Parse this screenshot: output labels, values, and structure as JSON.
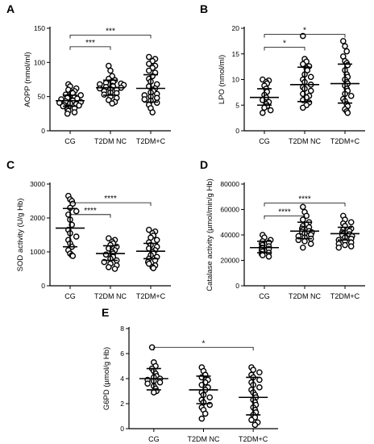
{
  "chart_data": [
    {
      "type": "scatter",
      "panel": "A",
      "ylabel": "AOPP (nmol/ml)",
      "ylim": [
        0,
        150
      ],
      "yticks": [
        0,
        50,
        100,
        150
      ],
      "categories": [
        "CG",
        "T2DM NC",
        "T2DM+C"
      ],
      "series": [
        {
          "values": [
            68,
            65,
            62,
            60,
            58,
            56,
            55,
            53,
            52,
            50,
            49,
            48,
            47,
            46,
            45,
            44,
            43,
            42,
            41,
            40,
            39,
            38,
            37,
            36,
            34,
            33,
            31,
            29,
            27,
            25
          ],
          "mean": 44,
          "sd_low": 36,
          "sd_high": 52
        },
        {
          "values": [
            95,
            88,
            80,
            76,
            74,
            72,
            71,
            70,
            69,
            68,
            67,
            66,
            65,
            64,
            63,
            62,
            61,
            60,
            58,
            56,
            55,
            53,
            50,
            48,
            45,
            42,
            40
          ],
          "mean": 63,
          "sd_low": 52,
          "sd_high": 74
        },
        {
          "values": [
            108,
            105,
            102,
            98,
            95,
            92,
            88,
            85,
            80,
            76,
            72,
            68,
            65,
            62,
            60,
            58,
            56,
            54,
            52,
            50,
            48,
            46,
            44,
            41,
            38,
            33,
            27
          ],
          "mean": 62,
          "sd_low": 42,
          "sd_high": 82
        }
      ],
      "significance": [
        {
          "from": 0,
          "to": 1,
          "label": "***",
          "y": 123
        },
        {
          "from": 0,
          "to": 2,
          "label": "***",
          "y": 140
        }
      ]
    },
    {
      "type": "scatter",
      "panel": "B",
      "ylabel": "LPO (nmol/ml)",
      "ylim": [
        0,
        20
      ],
      "yticks": [
        0,
        5,
        10,
        15,
        20
      ],
      "categories": [
        "CG",
        "T2DM NC",
        "T2DM+C"
      ],
      "series": [
        {
          "values": [
            10,
            9.8,
            9.5,
            9.2,
            8.8,
            8.2,
            7.6,
            7.0,
            6.5,
            6.0,
            5.6,
            5.2,
            4.8,
            4.5,
            4.0,
            3.5
          ],
          "mean": 6.5,
          "sd_low": 5.0,
          "sd_high": 8.2
        },
        {
          "values": [
            18.5,
            14,
            13.5,
            13,
            12.6,
            12.2,
            11.8,
            11,
            10.5,
            10,
            9.5,
            9,
            8.5,
            8.2,
            7.8,
            7.2,
            6.8,
            6.5,
            6,
            5.5,
            5,
            4.5
          ],
          "mean": 9.0,
          "sd_low": 5.7,
          "sd_high": 12.4
        },
        {
          "values": [
            17.5,
            16.5,
            15.5,
            14.5,
            13.6,
            13.2,
            12.8,
            11.8,
            11,
            10.5,
            10,
            9.5,
            9.2,
            8.8,
            8.2,
            7.8,
            7.2,
            6.8,
            6.2,
            5.8,
            5.2,
            4.8,
            4.2,
            3.8,
            3.5
          ],
          "mean": 9.2,
          "sd_low": 5.4,
          "sd_high": 13.0
        }
      ],
      "significance": [
        {
          "from": 0,
          "to": 1,
          "label": "*",
          "y": 16.3
        },
        {
          "from": 0,
          "to": 2,
          "label": "*",
          "y": 18.8
        }
      ]
    },
    {
      "type": "scatter",
      "panel": "C",
      "ylabel": "SOD activity (U/g Hb)",
      "ylim": [
        0,
        3000
      ],
      "yticks": [
        0,
        1000,
        2000,
        3000
      ],
      "categories": [
        "CG",
        "T2DM NC",
        "T2DM+C"
      ],
      "series": [
        {
          "values": [
            2650,
            2550,
            2500,
            2420,
            2300,
            2200,
            2100,
            1950,
            1800,
            1650,
            1550,
            1450,
            1350,
            1250,
            1150,
            1050,
            950,
            900,
            880
          ],
          "mean": 1700,
          "sd_low": 1150,
          "sd_high": 2280
        },
        {
          "values": [
            1400,
            1350,
            1300,
            1250,
            1200,
            1150,
            1100,
            1050,
            1000,
            950,
            920,
            880,
            850,
            800,
            750,
            700,
            650,
            600,
            550,
            500
          ],
          "mean": 950,
          "sd_low": 750,
          "sd_high": 1180
        },
        {
          "values": [
            1650,
            1600,
            1550,
            1480,
            1420,
            1350,
            1280,
            1200,
            1150,
            1100,
            1050,
            1000,
            950,
            900,
            850,
            800,
            750,
            700,
            650,
            600,
            550,
            520
          ],
          "mean": 1020,
          "sd_low": 800,
          "sd_high": 1250
        }
      ],
      "significance": [
        {
          "from": 0,
          "to": 1,
          "label": "****",
          "y": 2100
        },
        {
          "from": 0,
          "to": 2,
          "label": "****",
          "y": 2450
        }
      ]
    },
    {
      "type": "scatter",
      "panel": "D",
      "ylabel": "Catalase activity (µmol/min/g Hb)",
      "ylim": [
        0,
        80000
      ],
      "yticks": [
        0,
        20000,
        40000,
        60000,
        80000
      ],
      "categories": [
        "CG",
        "T2DM NC",
        "T2DM+C"
      ],
      "series": [
        {
          "values": [
            40000,
            38000,
            36000,
            35000,
            34000,
            33000,
            32000,
            31000,
            30000,
            29500,
            29000,
            28000,
            27000,
            26000,
            25000,
            24000,
            23000
          ],
          "mean": 30000,
          "sd_low": 26000,
          "sd_high": 35000
        },
        {
          "values": [
            62000,
            58000,
            55000,
            52000,
            50000,
            48000,
            47000,
            46000,
            45000,
            44000,
            43000,
            42500,
            42000,
            41000,
            40000,
            39000,
            38000,
            37000,
            36000,
            35000,
            33000,
            30000
          ],
          "mean": 43000,
          "sd_low": 37000,
          "sd_high": 50000
        },
        {
          "values": [
            55000,
            52000,
            50000,
            49000,
            47000,
            45000,
            44000,
            43000,
            42000,
            41000,
            40500,
            40000,
            39000,
            38000,
            37000,
            36000,
            35000,
            34000,
            33000,
            32000,
            31000,
            30000
          ],
          "mean": 41000,
          "sd_low": 36000,
          "sd_high": 46000
        }
      ],
      "significance": [
        {
          "from": 0,
          "to": 1,
          "label": "****",
          "y": 55000
        },
        {
          "from": 0,
          "to": 2,
          "label": "****",
          "y": 65000
        }
      ]
    },
    {
      "type": "scatter",
      "panel": "E",
      "ylabel": "G6PD (µmol/g Hb)",
      "ylim": [
        0,
        8
      ],
      "yticks": [
        0,
        2,
        4,
        6,
        8
      ],
      "categories": [
        "CG",
        "T2DM NC",
        "T2DM+C"
      ],
      "series": [
        {
          "values": [
            6.5,
            5.3,
            5.0,
            4.8,
            4.6,
            4.4,
            4.2,
            4.1,
            4.0,
            3.9,
            3.8,
            3.7,
            3.6,
            3.4,
            3.2,
            3.0,
            2.9
          ],
          "mean": 4.0,
          "sd_low": 3.1,
          "sd_high": 4.8
        },
        {
          "values": [
            4.9,
            4.6,
            4.3,
            4.1,
            3.9,
            3.7,
            3.5,
            3.3,
            3.1,
            2.9,
            2.7,
            2.5,
            2.3,
            2.1,
            1.9,
            1.7,
            1.5,
            1.2,
            0.8
          ],
          "mean": 3.1,
          "sd_low": 2.0,
          "sd_high": 4.2
        },
        {
          "values": [
            4.9,
            4.7,
            4.5,
            4.3,
            4.1,
            3.9,
            3.7,
            3.5,
            3.3,
            3.1,
            2.9,
            2.7,
            2.5,
            2.3,
            2.1,
            1.9,
            1.7,
            1.5,
            1.3,
            1.1,
            0.9,
            0.7,
            0.5,
            0.3
          ],
          "mean": 2.5,
          "sd_low": 1.1,
          "sd_high": 4.1
        }
      ],
      "significance": [
        {
          "from": 0,
          "to": 2,
          "label": "*",
          "y": 6.5
        }
      ]
    }
  ]
}
